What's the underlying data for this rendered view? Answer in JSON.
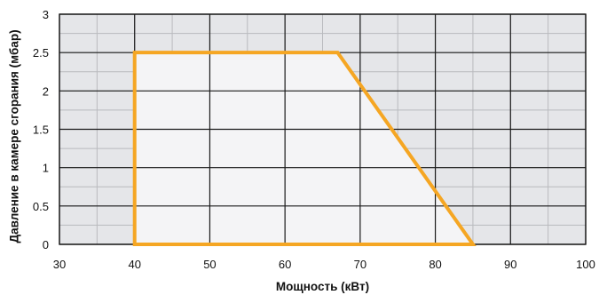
{
  "chart_data": {
    "type": "area",
    "title": "",
    "xlabel": "Мощность (кВт)",
    "ylabel": "Давление в камере сгорания (мбар)",
    "xlim": [
      30,
      100
    ],
    "ylim": [
      0,
      3
    ],
    "x_ticks": [
      30,
      40,
      50,
      60,
      70,
      80,
      90,
      100
    ],
    "y_ticks": [
      0,
      0.5,
      1,
      1.5,
      2,
      2.5,
      3
    ],
    "x_tick_labels": [
      "30",
      "40",
      "50",
      "60",
      "70",
      "80",
      "90",
      "100"
    ],
    "y_tick_labels": [
      "0",
      "0.5",
      "1",
      "1.5",
      "2",
      "2.5",
      "3"
    ],
    "x_minor_step": 5,
    "y_minor_step": 0.25,
    "grid": true,
    "series": [
      {
        "x": [
          40,
          40,
          67,
          85,
          40
        ],
        "y": [
          0,
          2.5,
          2.5,
          0,
          0
        ]
      }
    ]
  },
  "colors": {
    "plot_background": "#e5e6e9",
    "region_fill": "#f4f4f6",
    "boundary": "#f5a623",
    "major_grid": "#1a1a1a",
    "minor_grid": "#b9babe",
    "text": "#111111"
  }
}
